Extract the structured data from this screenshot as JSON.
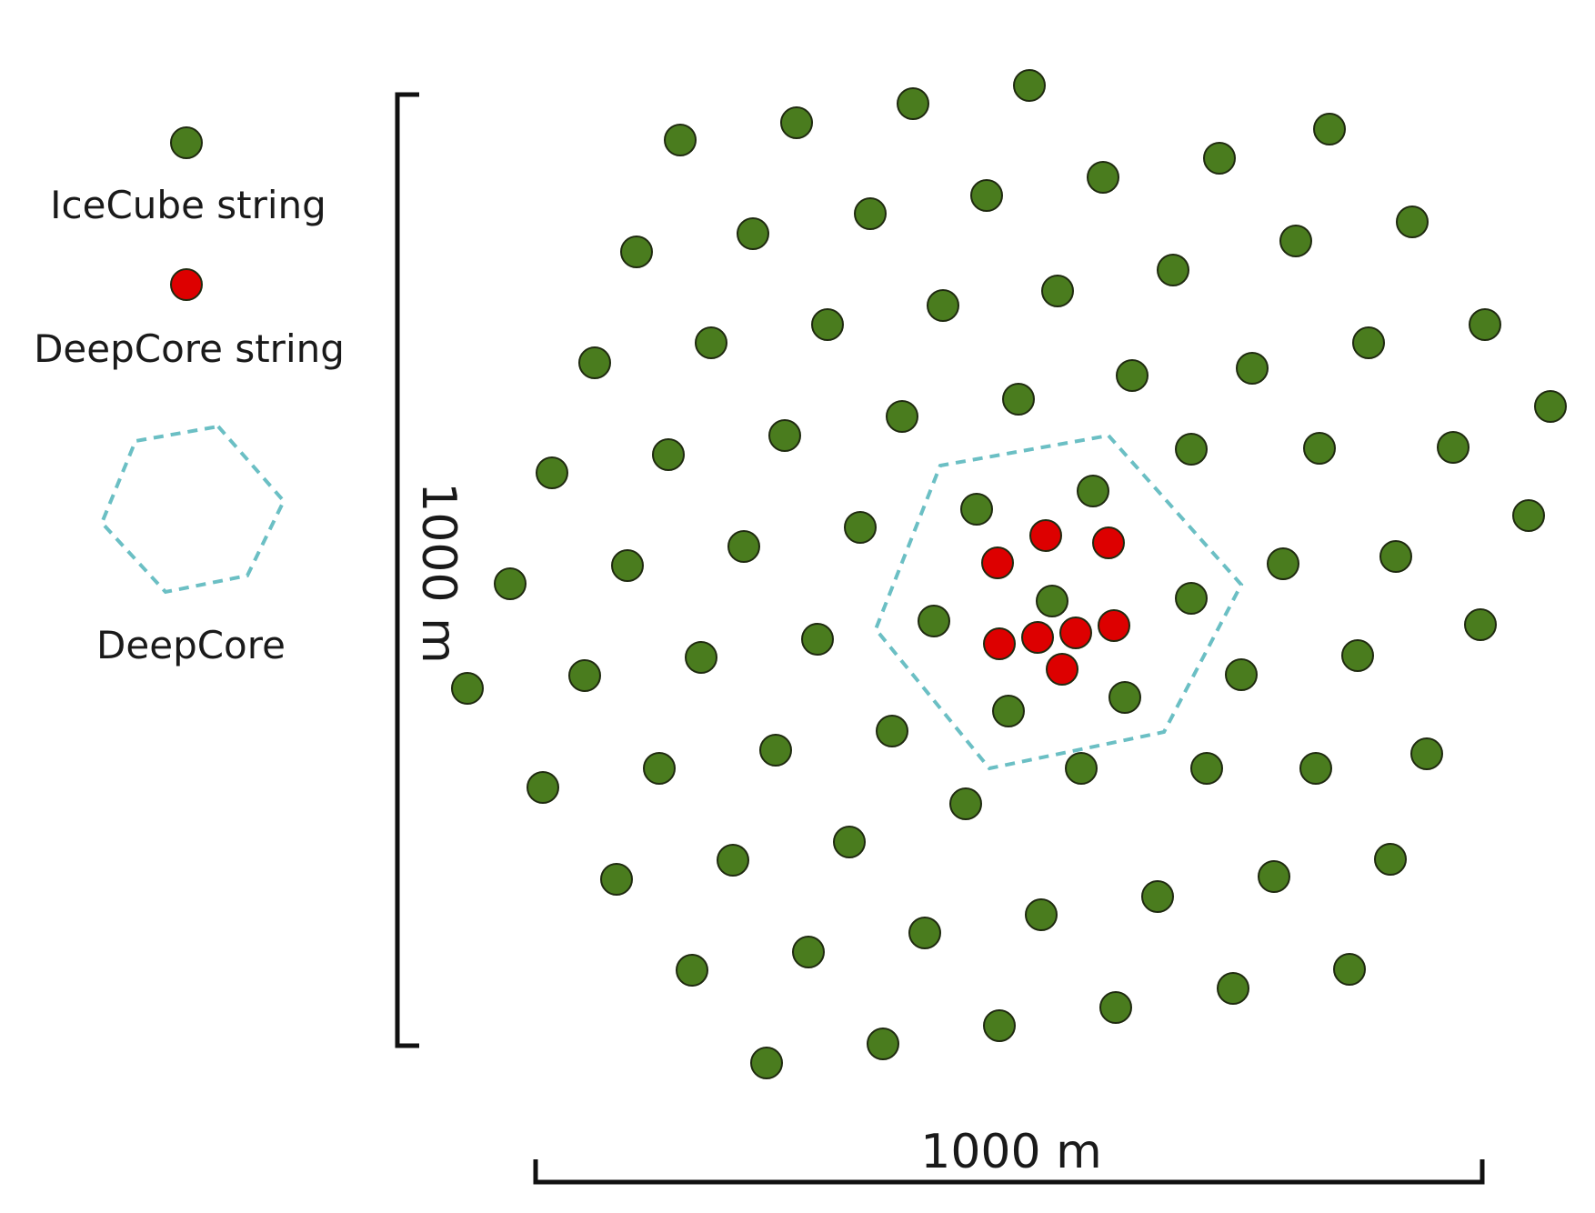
{
  "colors": {
    "icecube": "#4a7c1e",
    "deepcore": "#dd0000",
    "outline": "#1f2a10",
    "hexagon": "#6bbfc4",
    "scale_bar": "#111111"
  },
  "legend": {
    "icecube_label": "IceCube string",
    "deepcore_string_label": "DeepCore string",
    "deepcore_region_label": "DeepCore"
  },
  "scale": {
    "horizontal_label": "1000 m",
    "vertical_label": "1000 m"
  },
  "strings": {
    "icecube_count": 78,
    "deepcore_count": 8
  }
}
